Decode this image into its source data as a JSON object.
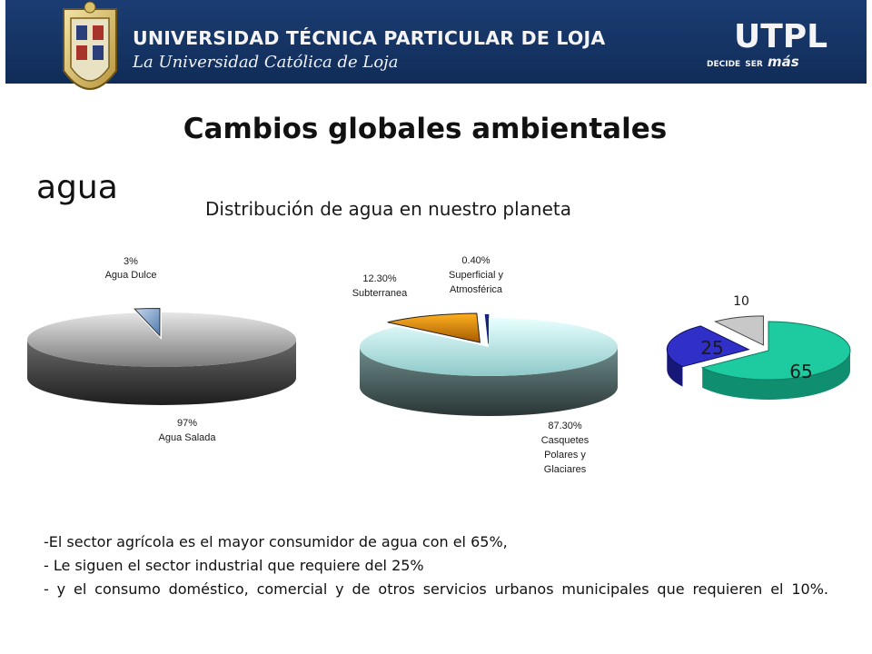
{
  "header": {
    "university_name": "UNIVERSIDAD TÉCNICA PARTICULAR DE LOJA",
    "tagline": "La Universidad Católica de Loja",
    "logo_text": "UTPL",
    "slogan_part1": "DECIDE",
    "slogan_part2": "SER",
    "slogan_part3": "más",
    "colors": {
      "banner_blue": "#1b3d73",
      "banner_dark": "#0f2a55"
    }
  },
  "slide": {
    "title": "Cambios globales ambientales",
    "section": "agua"
  },
  "chart_title": "Distribución de agua en nuestro planeta",
  "chart_data": [
    {
      "type": "pie",
      "style": "3d-exploded",
      "slices": [
        {
          "label_name": "Agua Dulce",
          "label_value": "3%",
          "value": 3,
          "color": "#5f86b3"
        },
        {
          "label_name": "Agua Salada",
          "label_value": "97%",
          "value": 97,
          "color": "#8a8a8a"
        }
      ]
    },
    {
      "type": "pie",
      "style": "3d-exploded",
      "slices": [
        {
          "label_name": "Subterranea",
          "label_value": "12.30%",
          "value": 12.3,
          "color": "#e08a00"
        },
        {
          "label_name_lines": [
            "Superficial y",
            "Atmosférica"
          ],
          "label_value": "0.40%",
          "value": 0.4,
          "color": "#1a237e"
        },
        {
          "label_name_lines": [
            "Casquetes",
            "Polares y",
            "Glaciares"
          ],
          "label_value": "87.30%",
          "value": 87.3,
          "color": "#b9eeee"
        }
      ]
    },
    {
      "type": "pie",
      "style": "3d-exploded",
      "slices": [
        {
          "label_value": "65",
          "value": 65,
          "color": "#1ecba0"
        },
        {
          "label_value": "25",
          "value": 25,
          "color": "#3030c8"
        },
        {
          "label_value": "10",
          "value": 10,
          "color": "#9a9a9a"
        }
      ]
    }
  ],
  "bullets": [
    "-El sector agrícola es el mayor consumidor de agua con el 65%,",
    "- Le siguen el sector industrial que requiere del 25%",
    "- y el consumo doméstico, comercial y de otros servicios urbanos municipales que requieren el 10%."
  ]
}
